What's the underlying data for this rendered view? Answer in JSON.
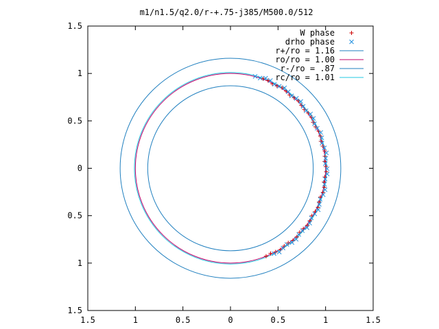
{
  "chart_data": {
    "type": "scatter",
    "title": "m1/n1.5/q2.0/r-+.75-j385/M500.0/512",
    "xlim": [
      -1.5,
      1.5
    ],
    "ylim": [
      -1.5,
      1.5
    ],
    "x_ticks": [
      -1.5,
      -1,
      -0.5,
      0,
      0.5,
      1,
      1.5
    ],
    "y_ticks": [
      -1.5,
      -1,
      -0.5,
      0,
      0.5,
      1,
      1.5
    ],
    "x_tick_labels": [
      "1.5",
      "1",
      "0.5",
      "0",
      "0.5",
      "1",
      "1.5"
    ],
    "y_tick_labels": [
      "1.5",
      "1",
      "0.5",
      "0",
      "0.5",
      "1",
      "1.5"
    ],
    "grid": false,
    "legend_position": "top-right",
    "circles": [
      {
        "name": "r+/ro = 1.16",
        "radius": 1.16,
        "color": "#1f7fbf"
      },
      {
        "name": "ro/ro = 1.00",
        "radius": 1.0,
        "color": "#c0006a"
      },
      {
        "name": "r-/ro = .87",
        "radius": 0.87,
        "color": "#1f7fbf"
      },
      {
        "name": "rc/ro = 1.01",
        "radius": 1.01,
        "color": "#20c8e0"
      }
    ],
    "series": [
      {
        "name": "W phase",
        "marker": "+",
        "color": "#cc0000",
        "angle_range_deg": [
          -68,
          70
        ],
        "radius": 1.0
      },
      {
        "name": "drho phase",
        "marker": "x",
        "color": "#1f8fdf",
        "angle_range_deg": [
          -63,
          75
        ],
        "radius": 1.01
      }
    ]
  }
}
